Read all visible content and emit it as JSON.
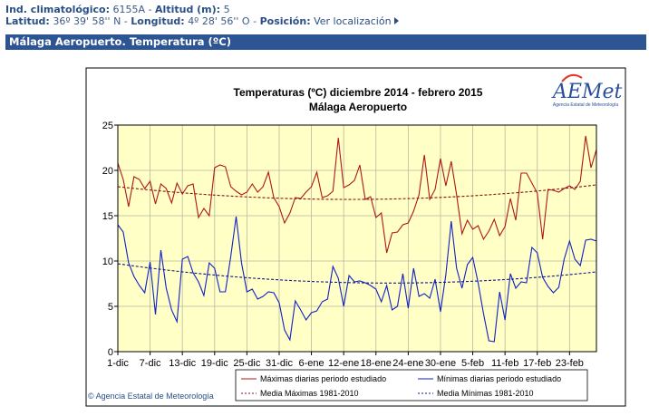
{
  "header": {
    "line1": [
      {
        "label": "Ind. climatológico:",
        "value": "6155A"
      },
      {
        "label": "Altitud (m):",
        "value": "5"
      }
    ],
    "line2": [
      {
        "label": "Latitud:",
        "value": "36º 39' 58'' N"
      },
      {
        "label": "Longitud:",
        "value": "4º 28' 56'' O"
      },
      {
        "label": "Posición:",
        "value": ""
      }
    ],
    "location_link": "Ver localización",
    "separator": "-"
  },
  "station_title": "Málaga Aeropuerto. Temperatura (ºC)",
  "logo": {
    "text": "AEMet",
    "subtitle": "Agencia Estatal de Meteorología"
  },
  "copyright": "© Agencia Estatal de Meteorología",
  "colors": {
    "header_bar": "#2d5593",
    "plot_bg": "#ffffc6",
    "max_series": "#b0161b",
    "min_series": "#1020c8",
    "mean_max": "#8a1015",
    "mean_min": "#10188a"
  },
  "chart_data": {
    "type": "line",
    "title": "Temperaturas (ºC) diciembre 2014 - febrero 2015",
    "subtitle": "Málaga Aeropuerto",
    "xlabel": "",
    "ylabel": "",
    "ylim": [
      0,
      25
    ],
    "yticks": [
      0,
      5,
      10,
      15,
      20,
      25
    ],
    "grid": true,
    "legend_position": "bottom",
    "x_tick_labels": [
      "1-dic",
      "7-dic",
      "13-dic",
      "19-dic",
      "25-dic",
      "31-dic",
      "6-ene",
      "12-ene",
      "18-ene",
      "24-ene",
      "30-ene",
      "5-feb",
      "11-feb",
      "17-feb",
      "23-feb"
    ],
    "x_tick_step_days": 6,
    "num_days": 90,
    "series": [
      {
        "name": "Máximas diarias periodo estudiado",
        "style": "solid",
        "color": "#b0161b",
        "values": [
          20.8,
          19.0,
          16.0,
          19.3,
          19.0,
          18.0,
          18.8,
          16.3,
          18.5,
          18.0,
          16.4,
          18.6,
          17.4,
          18.3,
          18.5,
          14.8,
          15.8,
          15.0,
          20.3,
          20.6,
          20.4,
          18.2,
          17.7,
          17.3,
          17.6,
          18.5,
          17.6,
          18.2,
          19.8,
          17.0,
          16.0,
          14.2,
          15.3,
          17.0,
          16.9,
          17.6,
          18.2,
          19.8,
          17.0,
          17.2,
          17.7,
          23.6,
          18.1,
          18.4,
          18.9,
          20.6,
          16.8,
          17.1,
          14.8,
          15.3,
          10.9,
          13.1,
          13.2,
          14.0,
          14.2,
          15.5,
          17.3,
          21.7,
          16.8,
          17.9,
          21.3,
          18.3,
          21.0,
          17.3,
          13.0,
          14.5,
          13.5,
          13.9,
          12.4,
          13.3,
          14.6,
          12.8,
          13.8,
          16.9,
          14.5,
          19.7,
          19.7,
          18.6,
          17.5,
          12.4,
          17.9,
          17.8,
          17.6,
          18.0,
          18.3,
          17.9,
          18.8,
          23.8,
          20.3,
          22.3
        ]
      },
      {
        "name": "Mínimas diarias periodo estudiado",
        "style": "solid",
        "color": "#1020c8",
        "values": [
          14.0,
          13.2,
          9.8,
          8.3,
          7.3,
          6.5,
          9.9,
          4.1,
          11.2,
          7.0,
          4.6,
          3.3,
          10.2,
          10.5,
          8.7,
          7.7,
          6.2,
          9.8,
          9.2,
          6.6,
          6.6,
          10.5,
          14.9,
          9.8,
          6.6,
          6.9,
          5.8,
          6.1,
          6.6,
          6.5,
          5.4,
          2.4,
          1.3,
          5.6,
          4.6,
          3.5,
          4.3,
          4.5,
          5.5,
          5.8,
          9.4,
          8.1,
          5.0,
          8.4,
          7.7,
          7.8,
          7.6,
          7.3,
          6.9,
          5.5,
          7.3,
          4.6,
          5.0,
          8.6,
          4.8,
          9.2,
          6.1,
          6.4,
          5.9,
          8.0,
          4.4,
          8.5,
          14.4,
          9.2,
          7.0,
          9.6,
          10.4,
          7.6,
          4.2,
          1.2,
          1.1,
          6.6,
          3.5,
          8.6,
          7.0,
          7.7,
          7.6,
          11.5,
          10.9,
          8.2,
          7.2,
          6.5,
          7.1,
          10.2,
          12.2,
          10.2,
          9.5,
          12.3,
          12.4,
          12.2
        ]
      },
      {
        "name": "Media Máximas 1981-2010",
        "style": "dashed",
        "color": "#8a1015",
        "values_start_mid_end": [
          18.2,
          16.8,
          18.4
        ]
      },
      {
        "name": "Media Mínimas 1981-2010",
        "style": "dashed",
        "color": "#10188a",
        "values_start_mid_end": [
          9.7,
          7.6,
          8.8
        ]
      }
    ]
  }
}
